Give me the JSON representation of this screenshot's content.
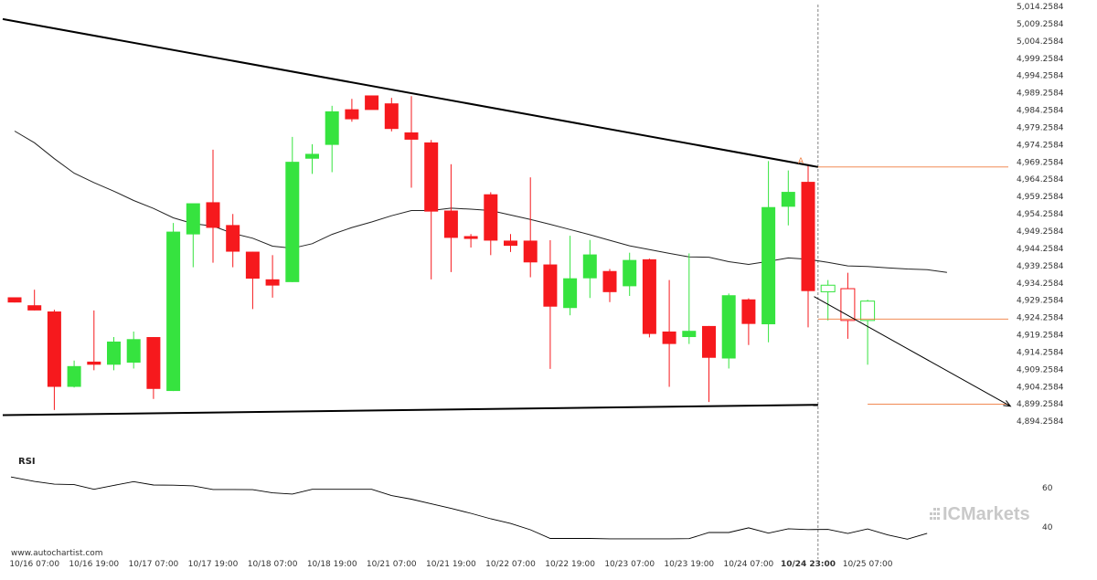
{
  "watermark": "www.autochartist.com",
  "brand": {
    "name": "ICMarkets",
    "prefix": "IC",
    "suffix": "Markets",
    "color": "#c9c9c9"
  },
  "pattern_marker": "A",
  "rsi_label": "RSI",
  "colors": {
    "bull": "#36e33f",
    "bear": "#f6191d",
    "trendline": "#000000",
    "ma": "#222222",
    "orange": "#ef7a3c",
    "projection": "#000000"
  },
  "chart_data": {
    "type": "candlestick",
    "y_axis": {
      "min": 4891.2584,
      "max": 5014.2584,
      "ticks": [
        "5,014.2584",
        "5,009.2584",
        "5,004.2584",
        "4,999.2584",
        "4,994.2584",
        "4,989.2584",
        "4,984.2584",
        "4,979.2584",
        "4,974.2584",
        "4,969.2584",
        "4,964.2584",
        "4,959.2584",
        "4,954.2584",
        "4,949.2584",
        "4,944.2584",
        "4,939.2584",
        "4,934.2584",
        "4,929.2584",
        "4,924.2584",
        "4,919.2584",
        "4,914.2584",
        "4,909.2584",
        "4,904.2584",
        "4,899.2584",
        "4,894.2584"
      ]
    },
    "x_labels": [
      {
        "text": "10/16 07:00",
        "index": 1
      },
      {
        "text": "10/16 19:00",
        "index": 4
      },
      {
        "text": "10/17 07:00",
        "index": 7
      },
      {
        "text": "10/17 19:00",
        "index": 10
      },
      {
        "text": "10/18 07:00",
        "index": 13
      },
      {
        "text": "10/18 19:00",
        "index": 16
      },
      {
        "text": "10/21 07:00",
        "index": 19
      },
      {
        "text": "10/21 19:00",
        "index": 22
      },
      {
        "text": "10/22 07:00",
        "index": 25
      },
      {
        "text": "10/22 19:00",
        "index": 28
      },
      {
        "text": "10/23 07:00",
        "index": 31
      },
      {
        "text": "10/23 19:00",
        "index": 34
      },
      {
        "text": "10/24 07:00",
        "index": 37
      },
      {
        "text": "10/24 23:00",
        "index": 40,
        "bold": true
      },
      {
        "text": "10/25 07:00",
        "index": 43
      }
    ],
    "candles": [
      {
        "o": 4930.1,
        "h": 4930.1,
        "l": 4928.6,
        "c": 4928.6,
        "dir": "bear"
      },
      {
        "o": 4927.8,
        "h": 4932.3,
        "l": 4926.3,
        "c": 4926.3,
        "dir": "bear"
      },
      {
        "o": 4926.0,
        "h": 4926.5,
        "l": 4897.5,
        "c": 4904.2,
        "dir": "bear"
      },
      {
        "o": 4904.2,
        "h": 4911.8,
        "l": 4904.0,
        "c": 4910.2,
        "dir": "bull"
      },
      {
        "o": 4911.5,
        "h": 4926.3,
        "l": 4909.0,
        "c": 4910.6,
        "dir": "bear"
      },
      {
        "o": 4910.6,
        "h": 4918.6,
        "l": 4909.0,
        "c": 4917.3,
        "dir": "bull"
      },
      {
        "o": 4911.2,
        "h": 4920.2,
        "l": 4909.5,
        "c": 4918.0,
        "dir": "bull"
      },
      {
        "o": 4918.6,
        "h": 4918.6,
        "l": 4900.7,
        "c": 4903.6,
        "dir": "bear"
      },
      {
        "o": 4903.0,
        "h": 4951.6,
        "l": 4903.0,
        "c": 4949.1,
        "dir": "bull"
      },
      {
        "o": 4948.3,
        "h": 4956.8,
        "l": 4938.8,
        "c": 4957.3,
        "dir": "bull"
      },
      {
        "o": 4957.6,
        "h": 4972.8,
        "l": 4940.1,
        "c": 4950.2,
        "dir": "bear"
      },
      {
        "o": 4951.0,
        "h": 4954.2,
        "l": 4938.8,
        "c": 4943.3,
        "dir": "bear"
      },
      {
        "o": 4943.3,
        "h": 4943.3,
        "l": 4926.7,
        "c": 4935.5,
        "dir": "bear"
      },
      {
        "o": 4935.3,
        "h": 4942.3,
        "l": 4930.0,
        "c": 4933.5,
        "dir": "bear"
      },
      {
        "o": 4934.5,
        "h": 4976.5,
        "l": 4934.5,
        "c": 4969.3,
        "dir": "bull"
      },
      {
        "o": 4970.2,
        "h": 4974.4,
        "l": 4965.8,
        "c": 4971.6,
        "dir": "bull"
      },
      {
        "o": 4974.2,
        "h": 4985.5,
        "l": 4966.3,
        "c": 4983.9,
        "dir": "bull"
      },
      {
        "o": 4984.5,
        "h": 4987.5,
        "l": 4980.9,
        "c": 4981.6,
        "dir": "bear"
      },
      {
        "o": 4988.5,
        "h": 4988.5,
        "l": 4984.5,
        "c": 4984.3,
        "dir": "bear"
      },
      {
        "o": 4986.2,
        "h": 4987.8,
        "l": 4978.1,
        "c": 4978.8,
        "dir": "bear"
      },
      {
        "o": 4977.8,
        "h": 4988.3,
        "l": 4961.8,
        "c": 4975.7,
        "dir": "bear"
      },
      {
        "o": 4974.9,
        "h": 4975.6,
        "l": 4935.3,
        "c": 4954.9,
        "dir": "bear"
      },
      {
        "o": 4955.2,
        "h": 4968.6,
        "l": 4937.4,
        "c": 4947.3,
        "dir": "bear"
      },
      {
        "o": 4947.8,
        "h": 4948.4,
        "l": 4944.5,
        "c": 4947.0,
        "dir": "bear"
      },
      {
        "o": 4959.9,
        "h": 4960.5,
        "l": 4942.3,
        "c": 4946.5,
        "dir": "bear"
      },
      {
        "o": 4946.5,
        "h": 4948.4,
        "l": 4943.2,
        "c": 4945.0,
        "dir": "bear"
      },
      {
        "o": 4946.5,
        "h": 4964.8,
        "l": 4935.9,
        "c": 4940.2,
        "dir": "bear"
      },
      {
        "o": 4939.6,
        "h": 4946.6,
        "l": 4909.4,
        "c": 4927.4,
        "dir": "bear"
      },
      {
        "o": 4927.0,
        "h": 4947.9,
        "l": 4924.9,
        "c": 4935.6,
        "dir": "bull"
      },
      {
        "o": 4935.6,
        "h": 4946.7,
        "l": 4929.9,
        "c": 4942.5,
        "dir": "bull"
      },
      {
        "o": 4937.7,
        "h": 4938.3,
        "l": 4928.7,
        "c": 4931.6,
        "dir": "bear"
      },
      {
        "o": 4933.3,
        "h": 4943.0,
        "l": 4930.5,
        "c": 4940.9,
        "dir": "bull"
      },
      {
        "o": 4941.1,
        "h": 4941.3,
        "l": 4918.5,
        "c": 4919.5,
        "dir": "bear"
      },
      {
        "o": 4920.2,
        "h": 4935.1,
        "l": 4904.2,
        "c": 4916.6,
        "dir": "bear"
      },
      {
        "o": 4918.6,
        "h": 4942.8,
        "l": 4916.6,
        "c": 4920.4,
        "dir": "bull"
      },
      {
        "o": 4921.8,
        "h": 4921.8,
        "l": 4899.8,
        "c": 4912.6,
        "dir": "bear"
      },
      {
        "o": 4912.4,
        "h": 4931.2,
        "l": 4909.5,
        "c": 4930.7,
        "dir": "bull"
      },
      {
        "o": 4929.5,
        "h": 4929.8,
        "l": 4916.3,
        "c": 4922.4,
        "dir": "bear"
      },
      {
        "o": 4922.3,
        "h": 4969.5,
        "l": 4917.1,
        "c": 4956.2,
        "dir": "bull"
      },
      {
        "o": 4956.3,
        "h": 4966.8,
        "l": 4950.9,
        "c": 4960.6,
        "dir": "bull"
      },
      {
        "o": 4963.5,
        "h": 4968.6,
        "l": 4921.4,
        "c": 4931.9,
        "dir": "bear"
      }
    ],
    "future_candles": [
      {
        "o": 4931.7,
        "h": 4935.1,
        "l": 4923.4,
        "c": 4933.6,
        "dir": "bull"
      },
      {
        "o": 4932.6,
        "h": 4937.2,
        "l": 4918.1,
        "c": 4923.4,
        "dir": "bear"
      },
      {
        "o": 4923.4,
        "h": 4929.4,
        "l": 4910.6,
        "c": 4929.0,
        "dir": "bull"
      }
    ],
    "moving_average": [
      4978.2,
      4974.8,
      4970.2,
      4966.0,
      4963.3,
      4960.8,
      4958.1,
      4955.8,
      4953.1,
      4951.4,
      4950.7,
      4948.6,
      4947.2,
      4944.9,
      4944.3,
      4945.6,
      4948.3,
      4950.3,
      4951.9,
      4953.7,
      4955.2,
      4955.2,
      4955.9,
      4955.6,
      4955.2,
      4953.9,
      4952.6,
      4951.2,
      4949.7,
      4948.2,
      4946.6,
      4945.0,
      4943.9,
      4942.8,
      4941.8,
      4941.7,
      4940.4,
      4939.6,
      4940.5,
      4941.5,
      4941.1,
      4940.2,
      4939.2,
      4939.0,
      4938.6,
      4938.3,
      4938.1,
      4937.3
    ],
    "resistance_line": {
      "from": {
        "index": -0.6,
        "value": 5010.6
      },
      "to": {
        "index": 40.5,
        "value": 4967.8
      }
    },
    "support_line": {
      "from": {
        "index": -0.6,
        "value": 4896.0
      },
      "to": {
        "index": 40.5,
        "value": 4899.0
      }
    },
    "pattern_level": 4967.8,
    "target_level": 4899.2,
    "current_level": 4923.8,
    "projection": {
      "from": {
        "index": 40.3,
        "value": 4930.3
      },
      "to": {
        "index": 50.2,
        "value": 4898.6
      }
    },
    "rsi": {
      "ticks": [
        60,
        40
      ],
      "values": [
        65.5,
        63.2,
        61.8,
        61.6,
        59.2,
        61.2,
        63.1,
        61.4,
        61.3,
        61.0,
        59.1,
        59.1,
        59.0,
        57.4,
        56.8,
        59.2,
        59.2,
        59.2,
        59.2,
        56.0,
        54.2,
        51.8,
        49.5,
        47.0,
        44.2,
        41.8,
        38.6,
        34.2,
        34.2,
        34.2,
        34.0,
        34.0,
        34.0,
        34.0,
        34.1,
        37.2,
        37.2,
        39.6,
        36.9,
        39.1,
        38.7,
        38.8,
        36.7,
        39.0,
        36.0,
        33.8,
        36.8
      ]
    }
  }
}
